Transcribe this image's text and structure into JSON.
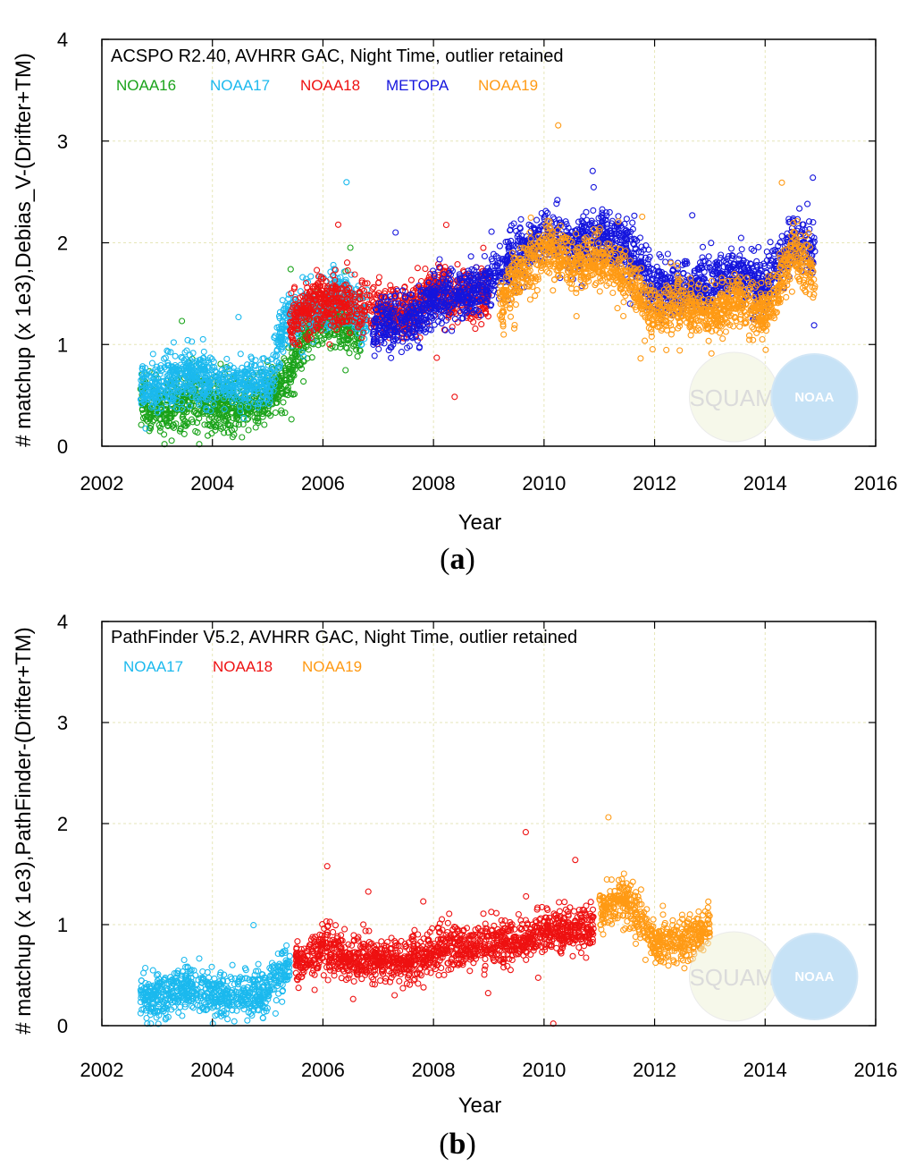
{
  "chart_data": [
    {
      "type": "scatter",
      "panel_label": "a",
      "title": "ACSPO R2.40, AVHRR GAC, Night Time, outlier retained",
      "xlabel": "Year",
      "ylabel": "# matchup (x 1e3),Debias_V-(Drifter+TM)",
      "xlim": [
        2002,
        2016
      ],
      "ylim": [
        0,
        4
      ],
      "xticks": [
        "2002",
        "2004",
        "2006",
        "2008",
        "2010",
        "2012",
        "2014",
        "2016"
      ],
      "yticks": [
        "0",
        "1",
        "2",
        "3",
        "4"
      ],
      "grid": true,
      "legend_position": "top-left",
      "series": [
        {
          "name": "NOAA16",
          "color": "#1aa31a",
          "points": [
            [
              2002.7,
              0.45
            ],
            [
              2003.0,
              0.38
            ],
            [
              2003.5,
              0.45
            ],
            [
              2004.0,
              0.42
            ],
            [
              2004.5,
              0.4
            ],
            [
              2005.0,
              0.5
            ],
            [
              2005.3,
              0.62
            ],
            [
              2005.7,
              1.15
            ],
            [
              2006.2,
              1.25
            ],
            [
              2006.7,
              1.1
            ]
          ]
        },
        {
          "name": "NOAA17",
          "color": "#1bb9ee",
          "points": [
            [
              2002.7,
              0.55
            ],
            [
              2003.0,
              0.58
            ],
            [
              2003.5,
              0.72
            ],
            [
              2004.0,
              0.62
            ],
            [
              2004.5,
              0.62
            ],
            [
              2005.0,
              0.62
            ],
            [
              2005.3,
              1.2
            ],
            [
              2005.8,
              1.35
            ],
            [
              2006.3,
              1.5
            ],
            [
              2006.8,
              1.25
            ]
          ]
        },
        {
          "name": "NOAA18",
          "color": "#ee1111",
          "points": [
            [
              2005.4,
              1.2
            ],
            [
              2005.8,
              1.4
            ],
            [
              2006.2,
              1.45
            ],
            [
              2006.6,
              1.35
            ],
            [
              2007.0,
              1.35
            ],
            [
              2007.5,
              1.3
            ],
            [
              2008.0,
              1.55
            ],
            [
              2008.5,
              1.45
            ],
            [
              2009.0,
              1.5
            ]
          ]
        },
        {
          "name": "METOPA",
          "color": "#1515dd",
          "points": [
            [
              2006.9,
              1.2
            ],
            [
              2007.3,
              1.2
            ],
            [
              2007.7,
              1.25
            ],
            [
              2008.0,
              1.45
            ],
            [
              2008.5,
              1.5
            ],
            [
              2009.0,
              1.6
            ],
            [
              2009.5,
              1.9
            ],
            [
              2010.0,
              2.05
            ],
            [
              2010.5,
              2.0
            ],
            [
              2011.0,
              2.05
            ],
            [
              2011.5,
              1.95
            ],
            [
              2012.0,
              1.55
            ],
            [
              2012.5,
              1.55
            ],
            [
              2013.0,
              1.6
            ],
            [
              2013.5,
              1.7
            ],
            [
              2014.0,
              1.55
            ],
            [
              2014.5,
              2.05
            ],
            [
              2014.9,
              1.9
            ]
          ]
        },
        {
          "name": "NOAA19",
          "color": "#ff9a14",
          "points": [
            [
              2009.2,
              1.4
            ],
            [
              2009.5,
              1.65
            ],
            [
              2010.0,
              1.95
            ],
            [
              2010.5,
              1.8
            ],
            [
              2011.0,
              1.85
            ],
            [
              2011.5,
              1.65
            ],
            [
              2012.0,
              1.3
            ],
            [
              2012.5,
              1.4
            ],
            [
              2013.0,
              1.3
            ],
            [
              2013.5,
              1.45
            ],
            [
              2014.0,
              1.3
            ],
            [
              2014.5,
              1.9
            ],
            [
              2014.9,
              1.7
            ]
          ]
        }
      ]
    },
    {
      "type": "scatter",
      "panel_label": "b",
      "title": "PathFinder V5.2, AVHRR GAC, Night Time, outlier retained",
      "xlabel": "Year",
      "ylabel": "# matchup (x 1e3),PathFinder-(Drifter+TM)",
      "xlim": [
        2002,
        2016
      ],
      "ylim": [
        0,
        4
      ],
      "xticks": [
        "2002",
        "2004",
        "2006",
        "2008",
        "2010",
        "2012",
        "2014",
        "2016"
      ],
      "yticks": [
        "0",
        "1",
        "2",
        "3",
        "4"
      ],
      "grid": true,
      "legend_position": "top-left",
      "series": [
        {
          "name": "NOAA17",
          "color": "#1bb9ee",
          "points": [
            [
              2002.7,
              0.3
            ],
            [
              2003.0,
              0.3
            ],
            [
              2003.5,
              0.38
            ],
            [
              2004.0,
              0.32
            ],
            [
              2004.5,
              0.32
            ],
            [
              2005.0,
              0.35
            ],
            [
              2005.4,
              0.6
            ]
          ]
        },
        {
          "name": "NOAA18",
          "color": "#ee1111",
          "points": [
            [
              2005.5,
              0.6
            ],
            [
              2006.0,
              0.75
            ],
            [
              2006.5,
              0.65
            ],
            [
              2007.0,
              0.65
            ],
            [
              2007.5,
              0.62
            ],
            [
              2008.0,
              0.75
            ],
            [
              2008.5,
              0.78
            ],
            [
              2009.0,
              0.8
            ],
            [
              2009.5,
              0.82
            ],
            [
              2010.0,
              0.95
            ],
            [
              2010.5,
              0.95
            ],
            [
              2010.9,
              0.95
            ]
          ]
        },
        {
          "name": "NOAA19",
          "color": "#ff9a14",
          "points": [
            [
              2011.0,
              1.1
            ],
            [
              2011.3,
              1.25
            ],
            [
              2011.6,
              1.2
            ],
            [
              2012.0,
              0.8
            ],
            [
              2012.5,
              0.85
            ],
            [
              2013.0,
              0.95
            ]
          ]
        }
      ]
    }
  ],
  "watermark": {
    "text": "SQUAM",
    "logo_text": "NOAA"
  }
}
